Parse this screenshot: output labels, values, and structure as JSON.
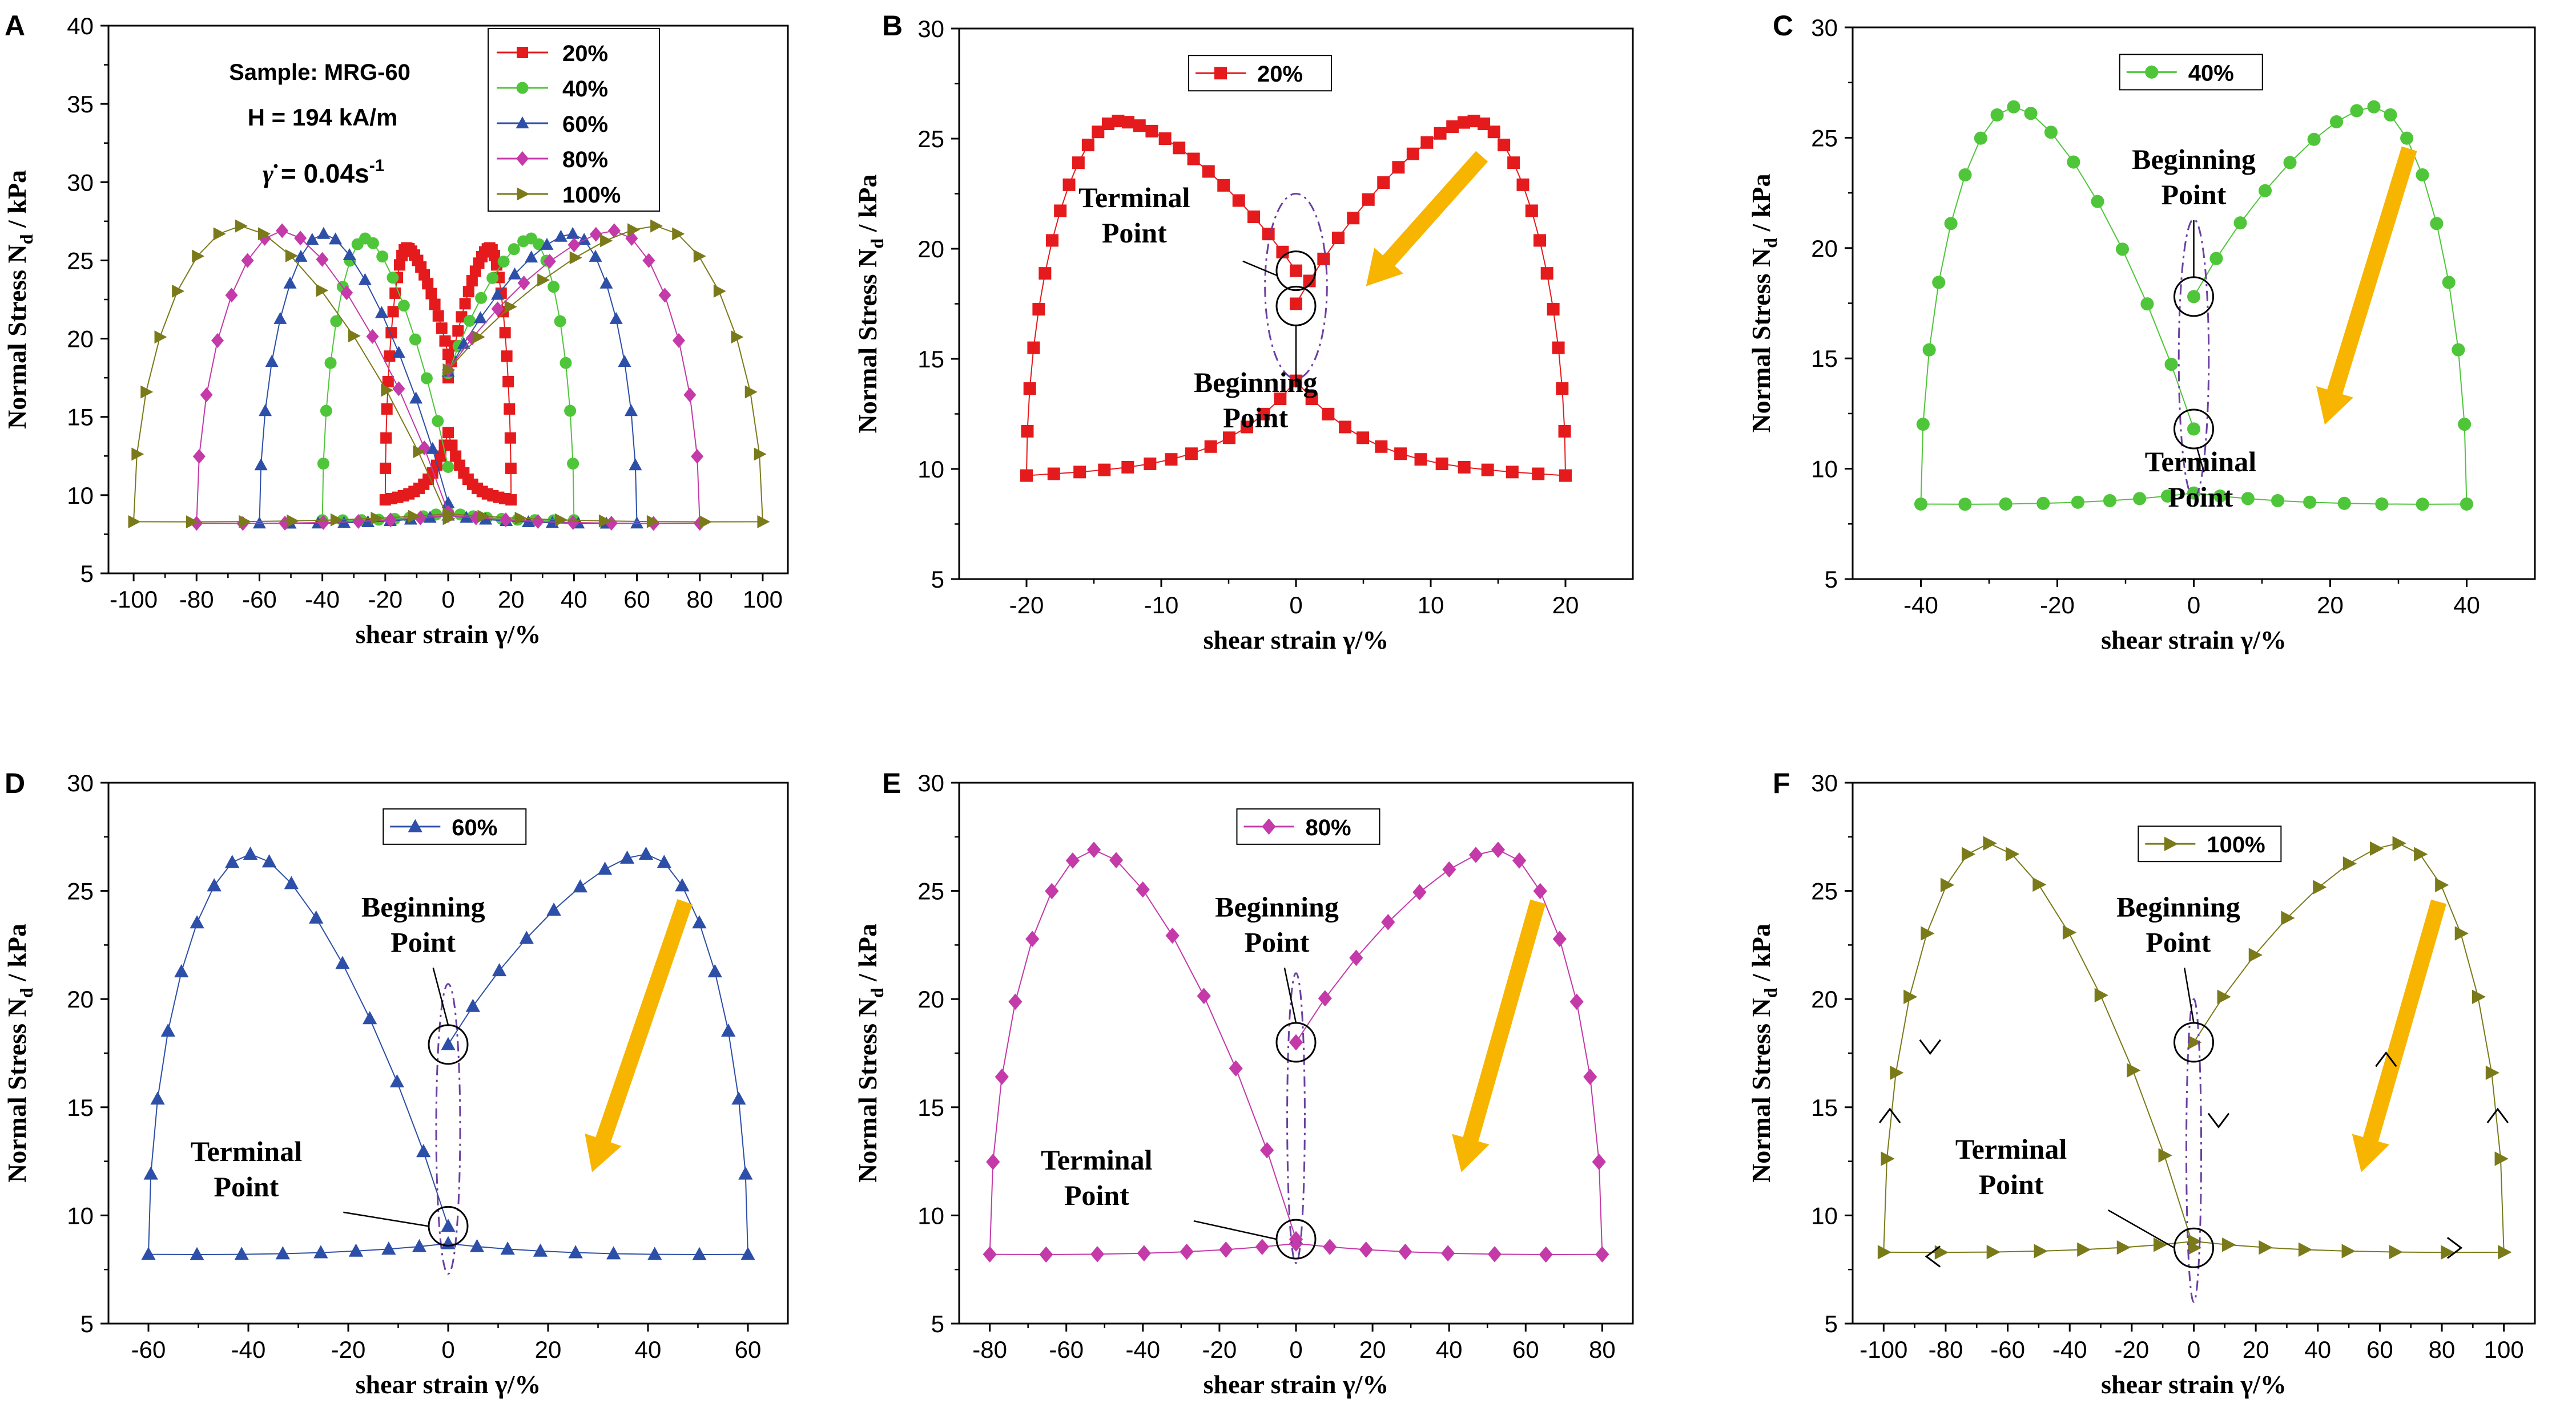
{
  "figure_type": "multi-panel normal stress vs shear strain loops",
  "colors": {
    "20%": "#e41a1c",
    "40%": "#4fc63a",
    "60%": "#2d4fa8",
    "80%": "#c33aa8",
    "100%": "#7a7a1a",
    "arrow": "#f7b500",
    "ellipse": "#6b3fa0"
  },
  "chart_data": [
    {
      "panel": "A",
      "type": "line",
      "xlabel": "shear strain γ/%",
      "ylabel_main": "Normal Stress N",
      "ylabel_sub": "d",
      "ylabel_unit": " / kPa",
      "xlim": [
        -108,
        108
      ],
      "ylim": [
        5,
        40
      ],
      "xticks": [
        -100,
        -80,
        -60,
        -40,
        -20,
        0,
        20,
        40,
        60,
        80,
        100
      ],
      "yticks": [
        5,
        10,
        15,
        20,
        25,
        30,
        35,
        40
      ],
      "annotations": {
        "sample": "Sample: MRG-60",
        "field": "H = 194 kA/m",
        "rate_symbol": "γ̇",
        "rate_value": " = 0.04s",
        "rate_exp": "-1"
      },
      "series": [
        {
          "name": "20%",
          "amplitude": 20,
          "peak": 25.8,
          "start": 17.5,
          "end": 19.0,
          "base": 10.0,
          "marker": "square"
        },
        {
          "name": "40%",
          "amplitude": 40,
          "peak": 26.4,
          "start": 17.8,
          "end": 11.8,
          "base": 8.3,
          "marker": "circle"
        },
        {
          "name": "60%",
          "amplitude": 60,
          "peak": 26.7,
          "start": 17.9,
          "end": 9.5,
          "base": 8.1,
          "marker": "triangle-up"
        },
        {
          "name": "80%",
          "amplitude": 80,
          "peak": 26.9,
          "start": 18.0,
          "end": 8.9,
          "base": 8.1,
          "marker": "diamond"
        },
        {
          "name": "100%",
          "amplitude": 100,
          "peak": 27.2,
          "start": 18.0,
          "end": 8.5,
          "base": 8.2,
          "marker": "triangle-right"
        }
      ]
    },
    {
      "panel": "B",
      "type": "line",
      "xlabel": "shear strain γ/%",
      "ylabel_main": "Normal Stress N",
      "ylabel_sub": "d",
      "ylabel_unit": " / kPa",
      "xlim": [
        -25,
        25
      ],
      "ylim": [
        5,
        30
      ],
      "xticks": [
        -20,
        -10,
        0,
        10,
        20
      ],
      "yticks": [
        5,
        10,
        15,
        20,
        25,
        30
      ],
      "series": [
        {
          "name": "20%",
          "amplitude": 20,
          "peak": 25.8,
          "start": 17.5,
          "end": 19.0,
          "base": 10.0,
          "marker": "square"
        }
      ],
      "labels": {
        "terminal_1": "Terminal",
        "terminal_2": "Point",
        "beginning_1": "Beginning",
        "beginning_2": "Point"
      }
    },
    {
      "panel": "C",
      "type": "line",
      "xlabel": "shear strain γ/%",
      "ylabel_main": "Normal Stress N",
      "ylabel_sub": "d",
      "ylabel_unit": " / kPa",
      "xlim": [
        -50,
        50
      ],
      "ylim": [
        5,
        30
      ],
      "xticks": [
        -40,
        -20,
        0,
        20,
        40
      ],
      "yticks": [
        5,
        10,
        15,
        20,
        25,
        30
      ],
      "series": [
        {
          "name": "40%",
          "amplitude": 40,
          "peak": 26.4,
          "start": 17.8,
          "end": 11.8,
          "base": 8.3,
          "marker": "circle"
        }
      ],
      "labels": {
        "terminal_1": "Terminal",
        "terminal_2": "Point",
        "beginning_1": "Beginning",
        "beginning_2": "Point"
      }
    },
    {
      "panel": "D",
      "type": "line",
      "xlabel": "shear strain γ/%",
      "ylabel_main": "Normal Stress N",
      "ylabel_sub": "d",
      "ylabel_unit": " / kPa",
      "xlim": [
        -68,
        68
      ],
      "ylim": [
        5,
        30
      ],
      "xticks": [
        -60,
        -40,
        -20,
        0,
        20,
        40,
        60
      ],
      "yticks": [
        5,
        10,
        15,
        20,
        25,
        30
      ],
      "series": [
        {
          "name": "60%",
          "amplitude": 60,
          "peak": 26.7,
          "start": 17.9,
          "end": 9.5,
          "base": 8.1,
          "marker": "triangle-up"
        }
      ],
      "labels": {
        "terminal_1": "Terminal",
        "terminal_2": "Point",
        "beginning_1": "Beginning",
        "beginning_2": "Point"
      }
    },
    {
      "panel": "E",
      "type": "line",
      "xlabel": "shear strain γ/%",
      "ylabel_main": "Normal Stress N",
      "ylabel_sub": "d",
      "ylabel_unit": " / kPa",
      "xlim": [
        -88,
        88
      ],
      "ylim": [
        5,
        30
      ],
      "xticks": [
        -80,
        -60,
        -40,
        -20,
        0,
        20,
        40,
        60,
        80
      ],
      "yticks": [
        5,
        10,
        15,
        20,
        25,
        30
      ],
      "series": [
        {
          "name": "80%",
          "amplitude": 80,
          "peak": 26.9,
          "start": 18.0,
          "end": 8.9,
          "base": 8.1,
          "marker": "diamond"
        }
      ],
      "labels": {
        "terminal_1": "Terminal",
        "terminal_2": "Point",
        "beginning_1": "Beginning",
        "beginning_2": "Point"
      }
    },
    {
      "panel": "F",
      "type": "line",
      "xlabel": "shear strain γ/%",
      "ylabel_main": "Normal Stress N",
      "ylabel_sub": "d",
      "ylabel_unit": " / kPa",
      "xlim": [
        -110,
        110
      ],
      "ylim": [
        5,
        30
      ],
      "xticks": [
        -100,
        -80,
        -60,
        -40,
        -20,
        0,
        20,
        40,
        60,
        80,
        100
      ],
      "yticks": [
        5,
        10,
        15,
        20,
        25,
        30
      ],
      "series": [
        {
          "name": "100%",
          "amplitude": 100,
          "peak": 27.2,
          "start": 18.0,
          "end": 8.5,
          "base": 8.2,
          "marker": "triangle-right"
        }
      ],
      "labels": {
        "terminal_1": "Terminal",
        "terminal_2": "Point",
        "beginning_1": "Beginning",
        "beginning_2": "Point"
      }
    }
  ]
}
